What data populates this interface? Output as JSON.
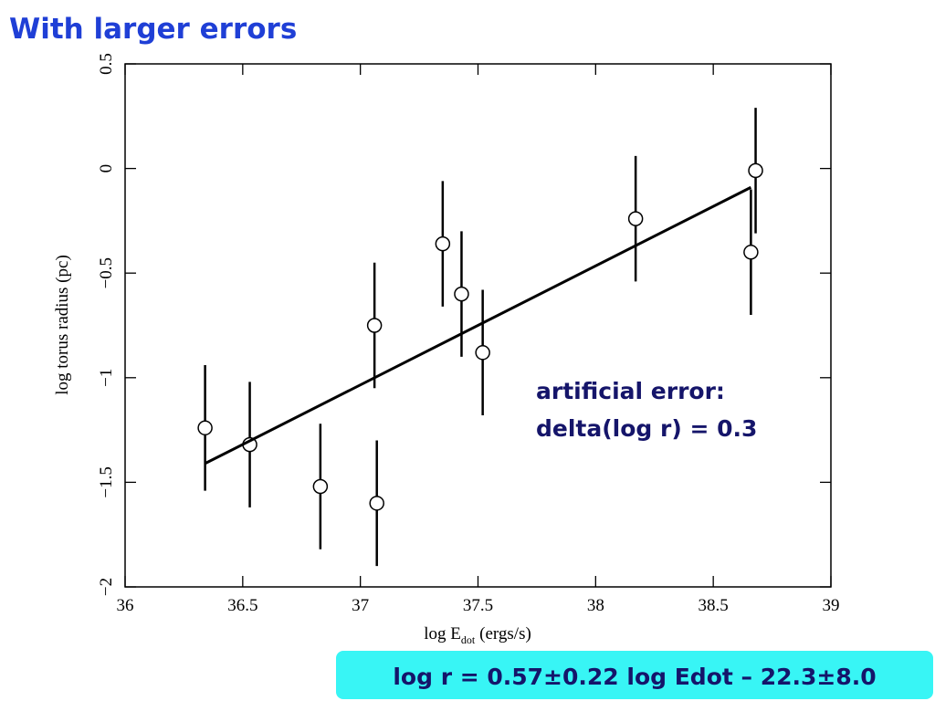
{
  "title": "With larger errors",
  "chart_data": {
    "type": "scatter",
    "xlabel": {
      "main": "log E",
      "sub": "dot",
      "unit": "(ergs/s)"
    },
    "ylabel": "log torus radius (pc)",
    "xlim": [
      36,
      39
    ],
    "ylim": [
      -2,
      0.5
    ],
    "xticks": [
      36,
      36.5,
      37,
      37.5,
      38,
      38.5,
      39
    ],
    "yticks": [
      {
        "value": -2,
        "label": "−2"
      },
      {
        "value": -1.5,
        "label": "−1.5"
      },
      {
        "value": -1,
        "label": "−1"
      },
      {
        "value": -0.5,
        "label": "−0.5"
      },
      0,
      0.5
    ],
    "x": [
      36.34,
      36.53,
      36.83,
      37.06,
      37.07,
      37.35,
      37.43,
      37.52,
      38.17,
      38.66,
      38.68
    ],
    "y": [
      -1.24,
      -1.32,
      -1.52,
      -0.75,
      -1.6,
      -0.36,
      -0.6,
      -0.88,
      -0.24,
      -0.4,
      -0.01
    ],
    "errors": [
      0.3,
      0.3,
      0.3,
      0.3,
      0.3,
      0.3,
      0.3,
      0.3,
      0.3,
      0.3,
      0.3
    ],
    "color": "#000000",
    "fit": {
      "x": [
        36.34,
        38.66
      ],
      "y": [
        -1.41,
        -0.09
      ]
    },
    "annotation": [
      "artificial error:",
      "delta(log r) = 0.3"
    ]
  },
  "equation": "log r = 0.57±0.22 log Edot – 22.3±8.0"
}
